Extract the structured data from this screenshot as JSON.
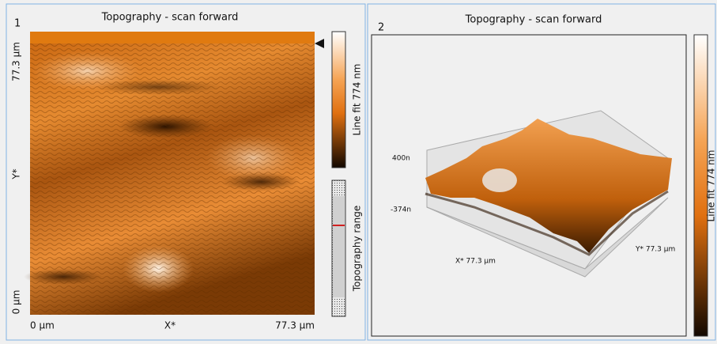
{
  "panels": [
    {
      "number": "1",
      "title": "Topography - scan forward",
      "y_axis": {
        "top": "77.3 µm",
        "label": "Y*",
        "bottom": "0 µm"
      },
      "x_axis": {
        "left": "0 µm",
        "label": "X*",
        "right": "77.3 µm"
      },
      "colorbar_label": "Line fit 774 nm",
      "range_label": "Topography range"
    },
    {
      "number": "2",
      "title": "Topography - scan forward",
      "z_top": "400n",
      "z_bottom": "-374n",
      "x_axis_label": "X* 77.3 µm",
      "y_axis_label": "Y* 77.3 µm",
      "colorbar_label": "Line fit 774 nm"
    }
  ]
}
